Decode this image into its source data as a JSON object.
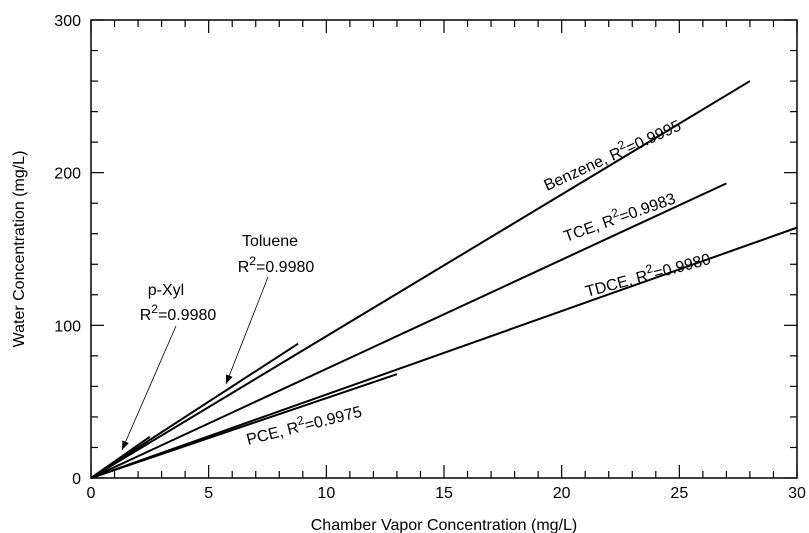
{
  "chart_data": {
    "type": "line",
    "xlabel": "Chamber Vapor Concentration (mg/L)",
    "ylabel": "Water Concentration (mg/L)",
    "xlim": [
      0,
      30
    ],
    "ylim": [
      0,
      300
    ],
    "x_ticks": [
      0,
      5,
      10,
      15,
      20,
      25,
      30
    ],
    "y_ticks": [
      0,
      100,
      200,
      300
    ],
    "x_minor_step": 1,
    "y_minor_step": 20,
    "grid": false,
    "legend": "none",
    "series": [
      {
        "name": "Benzene",
        "r2_prefix": "Benzene, R",
        "r2_suffix": "=0.9995",
        "x": [
          0,
          28
        ],
        "y": [
          0,
          260
        ]
      },
      {
        "name": "TCE",
        "r2_prefix": "TCE, R",
        "r2_suffix": "=0.9983",
        "x": [
          0,
          27
        ],
        "y": [
          0,
          193
        ]
      },
      {
        "name": "TDCE",
        "r2_prefix": "TDCE, R",
        "r2_suffix": "=0.9980",
        "x": [
          0,
          30
        ],
        "y": [
          0,
          164
        ]
      },
      {
        "name": "PCE",
        "r2_prefix": "PCE, R",
        "r2_suffix": "=0.9975",
        "x": [
          0,
          13
        ],
        "y": [
          0,
          68
        ]
      },
      {
        "name": "Toluene",
        "r2_prefix": "R",
        "r2_suffix": "=0.9980",
        "x": [
          0,
          8.8
        ],
        "y": [
          0,
          88
        ]
      },
      {
        "name": "p-Xyl",
        "r2_prefix": "R",
        "r2_suffix": "=0.9980",
        "x": [
          0,
          2.5
        ],
        "y": [
          0,
          27
        ]
      }
    ],
    "superscript": "2"
  }
}
